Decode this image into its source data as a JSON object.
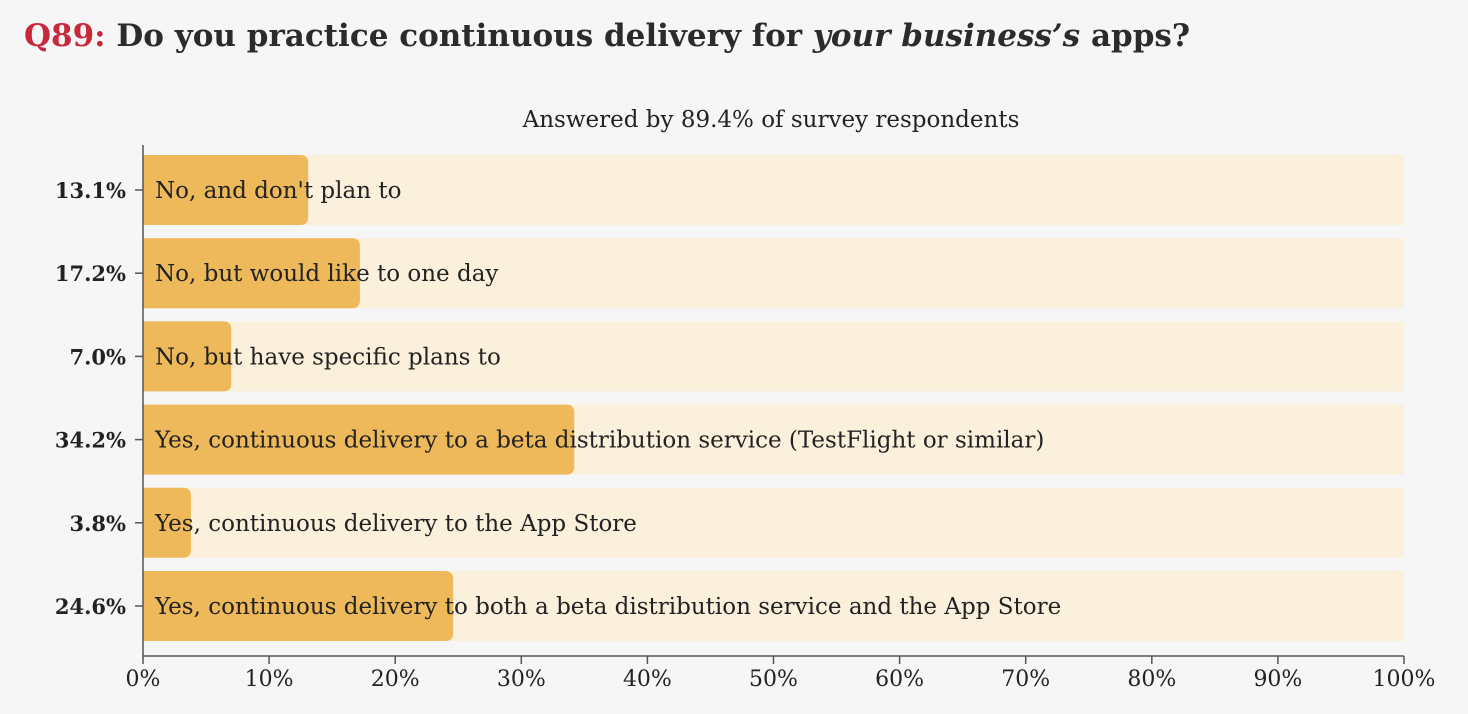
{
  "question": {
    "number": "Q89:",
    "text_before": "Do you practice continuous delivery for",
    "text_emphasis": "your business’s",
    "text_after": "apps?"
  },
  "colors": {
    "question_number": "#c8283a",
    "bar": "#edb95a",
    "track": "#fbf0dc",
    "background": "#f6f6f6",
    "axis": "#555555",
    "text": "#222222"
  },
  "chart_data": {
    "type": "bar",
    "orientation": "horizontal",
    "subtitle": "Answered by 89.4% of survey respondents",
    "categories": [
      "No, and don't plan to",
      "No, but would like to one day",
      "No, but have specific plans to",
      "Yes, continuous delivery to a beta distribution service (TestFlight or similar)",
      "Yes, continuous delivery to the App Store",
      "Yes, continuous delivery to both a beta distribution service and the App Store"
    ],
    "values": [
      13.1,
      17.2,
      7.0,
      34.2,
      3.8,
      24.6
    ],
    "value_labels": [
      "13.1%",
      "17.2%",
      "7.0%",
      "34.2%",
      "3.8%",
      "24.6%"
    ],
    "xlim": [
      0,
      100
    ],
    "x_ticks": [
      0,
      10,
      20,
      30,
      40,
      50,
      60,
      70,
      80,
      90,
      100
    ],
    "x_tick_labels": [
      "0%",
      "10%",
      "20%",
      "30%",
      "40%",
      "50%",
      "60%",
      "70%",
      "80%",
      "90%",
      "100%"
    ],
    "grid": false
  }
}
